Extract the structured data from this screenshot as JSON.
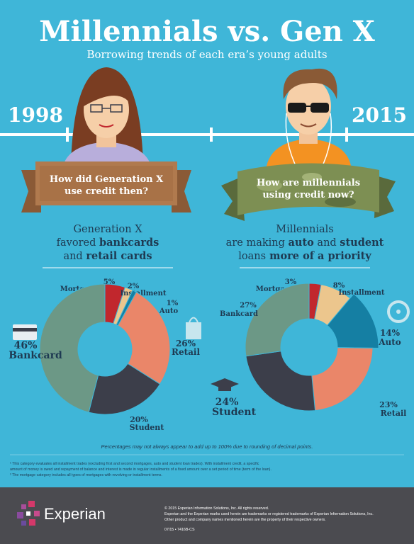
{
  "title": "Millennials vs. Gen X",
  "subtitle": "Borrowing trends of each era’s young adults",
  "eras": [
    {
      "year": "1998",
      "banner": [
        "How did Generation X",
        "use credit then?"
      ],
      "description": [
        [
          "Generation X"
        ],
        [
          "favored ",
          "bankcards"
        ],
        [
          "and ",
          "retail cards"
        ]
      ]
    },
    {
      "year": "2015",
      "banner": [
        "How are millennials",
        "using credit now?"
      ],
      "description": [
        [
          "Millennials"
        ],
        [
          "are making ",
          "auto",
          " and ",
          "student"
        ],
        [
          "loans",
          " more of a priority"
        ]
      ]
    }
  ],
  "chart_data": [
    {
      "type": "pie",
      "categories": [
        "Mortgage",
        "Installment",
        "Auto",
        "Retail",
        "Student",
        "Bankcard"
      ],
      "values": [
        5,
        2,
        1,
        26,
        20,
        46
      ],
      "value_labels": [
        "5%",
        "2%",
        "1%",
        "26%",
        "20%",
        "46%"
      ],
      "colors": [
        "#c1272d",
        "#ecc68d",
        "#157fa3",
        "#ea8669",
        "#3c3e4a",
        "#6c9886"
      ]
    },
    {
      "type": "pie",
      "categories": [
        "Mortgage",
        "Installment",
        "Auto",
        "Retail",
        "Student",
        "Bankcard"
      ],
      "values": [
        3,
        8,
        14,
        23,
        24,
        27
      ],
      "value_labels": [
        "3%",
        "8%",
        "14%",
        "23%",
        "24%",
        "27%"
      ],
      "colors": [
        "#c1272d",
        "#ecc68d",
        "#157fa3",
        "#ea8669",
        "#3c3e4a",
        "#6c9886"
      ]
    }
  ],
  "note": "Percentages may not always appear to add up to 100% due to rounding of decimal points.",
  "footnotes": [
    "¹ This category evaluates all installment trades (excluding first and second mortgages, auto and student loan trades). With installment credit, a specific",
    "amount of money is owed and repayment of balance and interest is made in regular installments of a fixed amount over a set period of time (term of the loan).",
    "² The mortgage category includes all types of mortgages with revolving or installment terms."
  ],
  "footer": {
    "logo": "Experian",
    "lines": [
      "© 2015 Experian Information Solutions, Inc. All rights reserved.",
      "Experian and the Experian marks used herein are trademarks or registered trademarks of Experian Information Solutions, Inc.",
      "Other product and company names mentioned herein are the property of their respective owners."
    ],
    "code": "07/15 • 7416B-CS"
  }
}
